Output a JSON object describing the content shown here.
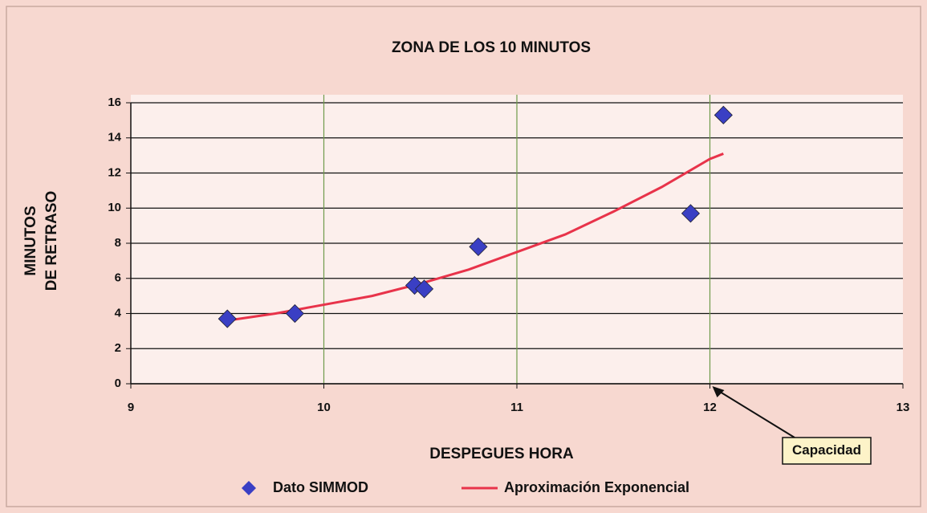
{
  "chart_data": {
    "type": "scatter",
    "title": "ZONA DE LOS 10 MINUTOS",
    "xlabel": "DESPEGUES HORA",
    "ylabel": [
      "MINUTOS",
      "DE RETRASO"
    ],
    "xlim": [
      9,
      13
    ],
    "ylim": [
      0,
      16
    ],
    "xticks": [
      9,
      10,
      11,
      12,
      13
    ],
    "yticks": [
      0,
      2,
      4,
      6,
      8,
      10,
      12,
      14,
      16
    ],
    "grid": true,
    "legend": "bottom",
    "series": [
      {
        "name": "Dato SIMMOD",
        "color": "#3a3fc4",
        "mark": "diamond",
        "x": [
          9.5,
          9.85,
          10.47,
          10.52,
          10.8,
          11.9,
          12.07
        ],
        "values": [
          3.7,
          4.0,
          5.6,
          5.4,
          7.8,
          9.7,
          15.3
        ]
      },
      {
        "name": "Aproximación Exponencial",
        "color": "#e8334a",
        "mark": "line",
        "x": [
          9.5,
          9.75,
          10,
          10.25,
          10.5,
          10.75,
          11,
          11.25,
          11.5,
          11.75,
          12,
          12.07
        ],
        "values": [
          3.6,
          4.0,
          4.5,
          5.0,
          5.7,
          6.5,
          7.5,
          8.5,
          9.8,
          11.2,
          12.8,
          13.1
        ]
      }
    ],
    "annotations": [
      {
        "text": "Capacidad",
        "x": 12,
        "y": 0
      }
    ]
  }
}
